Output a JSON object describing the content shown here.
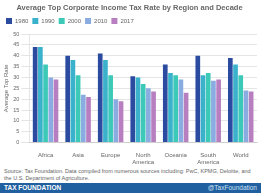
{
  "chart_data": {
    "type": "bar",
    "title": "Average Top Corporate Income Tax Rate by Region and Decade",
    "ylabel": "Average Top Rate",
    "categories": [
      "Africa",
      "Asia",
      "Europe",
      "North\nAmerica",
      "Oceania",
      "South\nAmerica",
      "World"
    ],
    "series": [
      {
        "name": "1980",
        "color": "#2b4ba0",
        "values": [
          44,
          40,
          41,
          30.5,
          36,
          40,
          39
        ]
      },
      {
        "name": "1990",
        "color": "#3ab2cc",
        "values": [
          44,
          38,
          38,
          30,
          32,
          31,
          36
        ]
      },
      {
        "name": "2000",
        "color": "#3dc9b8",
        "values": [
          36,
          31,
          31,
          27,
          31,
          32,
          31
        ]
      },
      {
        "name": "2010",
        "color": "#8aace0",
        "values": [
          30,
          22,
          20,
          25,
          29,
          28.5,
          24
        ]
      },
      {
        "name": "2017",
        "color": "#b87fc0",
        "values": [
          29,
          21,
          19,
          23.5,
          23,
          29,
          23.5
        ]
      }
    ],
    "ylim": [
      0,
      50
    ],
    "yticks": [
      0,
      5,
      10,
      15,
      20,
      25,
      30,
      35,
      40,
      45,
      50
    ],
    "grid": true,
    "legend": "upper left",
    "annotations": [
      "Source: Tax Foundation. Data compiled from numerous sources including: PwC, KPMG, Deloitte, and the U.S. Department of Agriculture.",
      "TAX FOUNDATION",
      "@TaxFoundation"
    ]
  }
}
